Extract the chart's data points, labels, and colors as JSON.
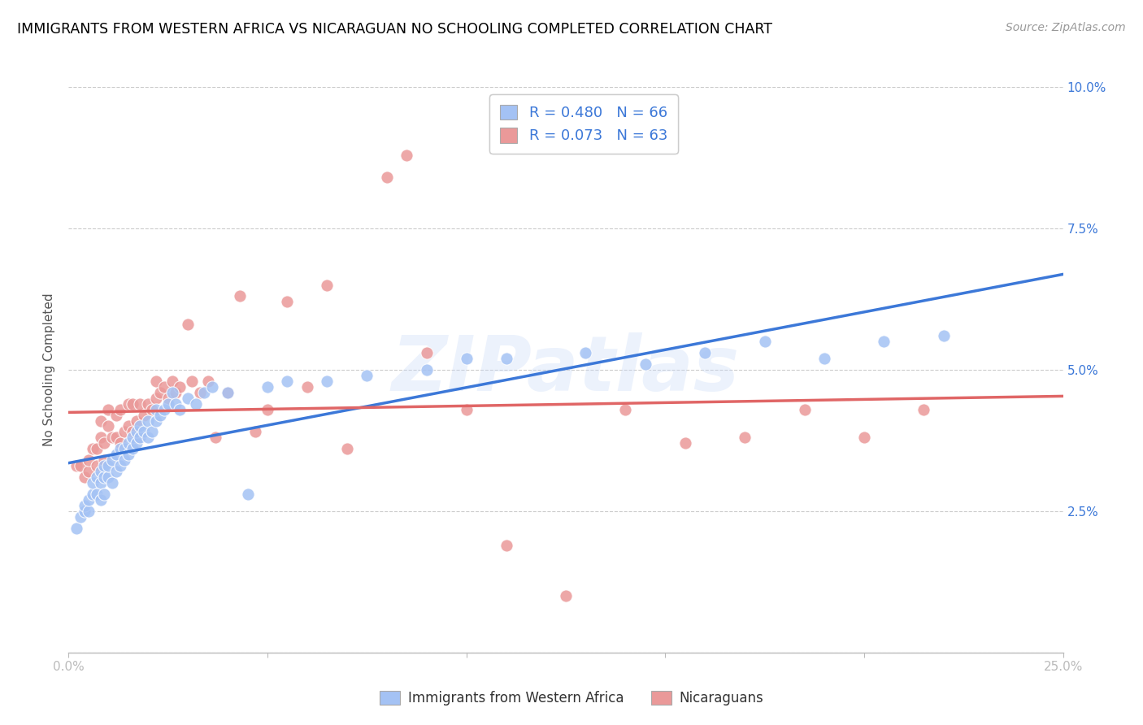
{
  "title": "IMMIGRANTS FROM WESTERN AFRICA VS NICARAGUAN NO SCHOOLING COMPLETED CORRELATION CHART",
  "source": "Source: ZipAtlas.com",
  "ylabel": "No Schooling Completed",
  "xlim": [
    0.0,
    0.25
  ],
  "ylim": [
    0.0,
    0.1
  ],
  "xticks": [
    0.0,
    0.05,
    0.1,
    0.15,
    0.2,
    0.25
  ],
  "yticks": [
    0.0,
    0.025,
    0.05,
    0.075,
    0.1
  ],
  "xticklabels_bottom": [
    "0.0%",
    "",
    "",
    "",
    "",
    "25.0%"
  ],
  "yticklabels_right": [
    "",
    "2.5%",
    "5.0%",
    "7.5%",
    "10.0%"
  ],
  "blue_color": "#a4c2f4",
  "pink_color": "#ea9999",
  "blue_line_color": "#3c78d8",
  "pink_line_color": "#e06666",
  "legend_R_blue": "R = 0.480",
  "legend_N_blue": "N = 66",
  "legend_R_pink": "R = 0.073",
  "legend_N_pink": "N = 63",
  "legend_label_blue": "Immigrants from Western Africa",
  "legend_label_pink": "Nicaraguans",
  "blue_x": [
    0.002,
    0.003,
    0.004,
    0.004,
    0.005,
    0.005,
    0.006,
    0.006,
    0.007,
    0.007,
    0.008,
    0.008,
    0.008,
    0.009,
    0.009,
    0.009,
    0.01,
    0.01,
    0.011,
    0.011,
    0.012,
    0.012,
    0.013,
    0.013,
    0.014,
    0.014,
    0.015,
    0.015,
    0.016,
    0.016,
    0.017,
    0.017,
    0.018,
    0.018,
    0.019,
    0.02,
    0.02,
    0.021,
    0.022,
    0.022,
    0.023,
    0.024,
    0.025,
    0.026,
    0.027,
    0.028,
    0.03,
    0.032,
    0.034,
    0.036,
    0.04,
    0.045,
    0.05,
    0.055,
    0.065,
    0.075,
    0.09,
    0.1,
    0.11,
    0.13,
    0.145,
    0.16,
    0.175,
    0.19,
    0.205,
    0.22
  ],
  "blue_y": [
    0.022,
    0.024,
    0.025,
    0.026,
    0.025,
    0.027,
    0.028,
    0.03,
    0.028,
    0.031,
    0.027,
    0.03,
    0.032,
    0.028,
    0.031,
    0.033,
    0.031,
    0.033,
    0.03,
    0.034,
    0.032,
    0.035,
    0.033,
    0.036,
    0.034,
    0.036,
    0.035,
    0.037,
    0.036,
    0.038,
    0.037,
    0.039,
    0.038,
    0.04,
    0.039,
    0.038,
    0.041,
    0.039,
    0.041,
    0.043,
    0.042,
    0.043,
    0.044,
    0.046,
    0.044,
    0.043,
    0.045,
    0.044,
    0.046,
    0.047,
    0.046,
    0.028,
    0.047,
    0.048,
    0.048,
    0.049,
    0.05,
    0.052,
    0.052,
    0.053,
    0.051,
    0.053,
    0.055,
    0.052,
    0.055,
    0.056
  ],
  "pink_x": [
    0.002,
    0.003,
    0.004,
    0.005,
    0.005,
    0.006,
    0.007,
    0.007,
    0.008,
    0.008,
    0.009,
    0.009,
    0.01,
    0.01,
    0.011,
    0.012,
    0.012,
    0.013,
    0.013,
    0.014,
    0.015,
    0.015,
    0.016,
    0.016,
    0.017,
    0.018,
    0.018,
    0.019,
    0.02,
    0.021,
    0.022,
    0.022,
    0.023,
    0.024,
    0.025,
    0.026,
    0.027,
    0.028,
    0.03,
    0.031,
    0.033,
    0.035,
    0.037,
    0.04,
    0.043,
    0.047,
    0.05,
    0.055,
    0.06,
    0.065,
    0.07,
    0.08,
    0.085,
    0.09,
    0.1,
    0.11,
    0.125,
    0.14,
    0.155,
    0.17,
    0.185,
    0.2,
    0.215
  ],
  "pink_y": [
    0.033,
    0.033,
    0.031,
    0.032,
    0.034,
    0.036,
    0.033,
    0.036,
    0.038,
    0.041,
    0.034,
    0.037,
    0.04,
    0.043,
    0.038,
    0.038,
    0.042,
    0.037,
    0.043,
    0.039,
    0.04,
    0.044,
    0.039,
    0.044,
    0.041,
    0.038,
    0.044,
    0.042,
    0.044,
    0.043,
    0.045,
    0.048,
    0.046,
    0.047,
    0.045,
    0.048,
    0.046,
    0.047,
    0.058,
    0.048,
    0.046,
    0.048,
    0.038,
    0.046,
    0.063,
    0.039,
    0.043,
    0.062,
    0.047,
    0.065,
    0.036,
    0.084,
    0.088,
    0.053,
    0.043,
    0.019,
    0.01,
    0.043,
    0.037,
    0.038,
    0.043,
    0.038,
    0.043
  ],
  "background_color": "#ffffff",
  "grid_color": "#cccccc",
  "title_color": "#000000",
  "source_color": "#999999",
  "watermark_color": "#c9daf8",
  "watermark_alpha": 0.35,
  "blue_legend_color": "#a4c2f4",
  "pink_legend_color": "#ea9999"
}
